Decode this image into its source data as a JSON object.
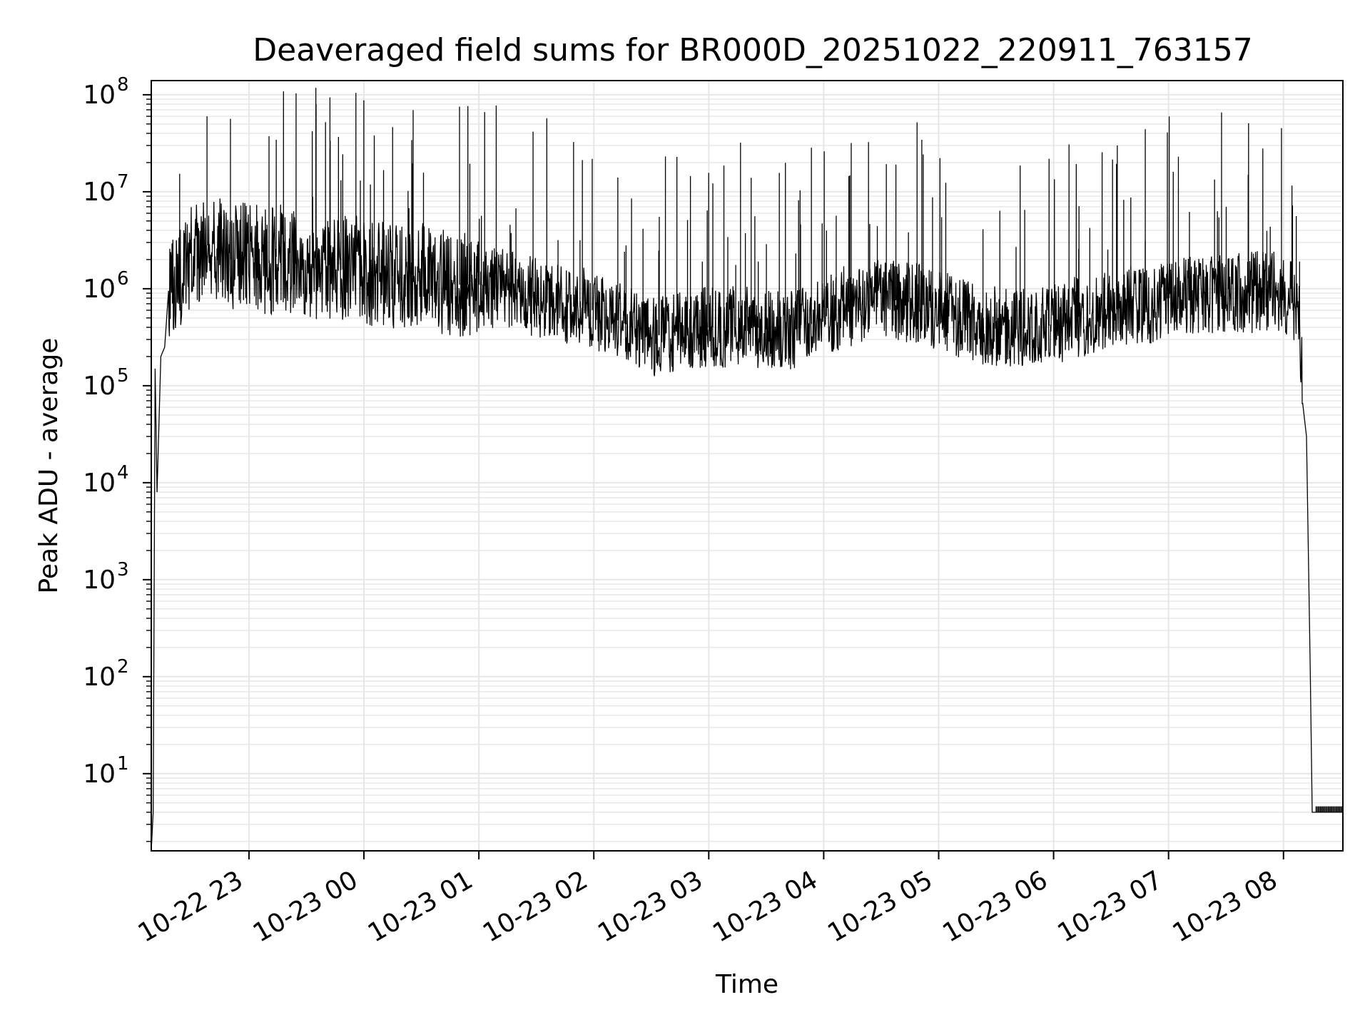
{
  "chart_data": {
    "type": "line",
    "title": "Deaveraged field sums for BR000D_20251022_220911_763157",
    "xlabel": "Time",
    "ylabel": "Peak ADU - average",
    "yscale": "log",
    "ylim": [
      1.6,
      140000000
    ],
    "xlim": [
      "2025-10-22 22:09",
      "2025-10-23 08:31"
    ],
    "grid": true,
    "colors": {
      "line": "#000000",
      "grid": "#e6e6e6",
      "axes": "#000000"
    },
    "x_ticks": [
      "10-22 23",
      "10-23 00",
      "10-23 01",
      "10-23 02",
      "10-23 03",
      "10-23 04",
      "10-23 05",
      "10-23 06",
      "10-23 07",
      "10-23 08"
    ],
    "y_ticks": [
      {
        "base": "10",
        "exp": "1"
      },
      {
        "base": "10",
        "exp": "2"
      },
      {
        "base": "10",
        "exp": "3"
      },
      {
        "base": "10",
        "exp": "4"
      },
      {
        "base": "10",
        "exp": "5"
      },
      {
        "base": "10",
        "exp": "6"
      },
      {
        "base": "10",
        "exp": "7"
      },
      {
        "base": "10",
        "exp": "8"
      }
    ],
    "series": [
      {
        "x": [
          "2025-10-22 22:09",
          "2025-10-22 22:10",
          "2025-10-22 22:11",
          "2025-10-22 22:12",
          "2025-10-22 22:14",
          "2025-10-22 22:16",
          "2025-10-22 22:18",
          "2025-10-22 22:20",
          "2025-10-22 22:25",
          "2025-10-22 22:30",
          "2025-10-22 22:35",
          "2025-10-22 22:40",
          "2025-10-22 22:45",
          "2025-10-22 22:50",
          "2025-10-22 22:55",
          "2025-10-22 23:00",
          "2025-10-22 23:05",
          "2025-10-22 23:10",
          "2025-10-22 23:15",
          "2025-10-22 23:20",
          "2025-10-22 23:25",
          "2025-10-22 23:30",
          "2025-10-22 23:35",
          "2025-10-22 23:40",
          "2025-10-22 23:45",
          "2025-10-22 23:50",
          "2025-10-22 23:55",
          "2025-10-23 00:00",
          "2025-10-23 00:10",
          "2025-10-23 00:20",
          "2025-10-23 00:30",
          "2025-10-23 00:40",
          "2025-10-23 00:50",
          "2025-10-23 01:00",
          "2025-10-23 01:10",
          "2025-10-23 01:20",
          "2025-10-23 01:30",
          "2025-10-23 01:40",
          "2025-10-23 01:50",
          "2025-10-23 02:00",
          "2025-10-23 02:10",
          "2025-10-23 02:20",
          "2025-10-23 02:30",
          "2025-10-23 02:40",
          "2025-10-23 02:50",
          "2025-10-23 03:00",
          "2025-10-23 03:10",
          "2025-10-23 03:20",
          "2025-10-23 03:30",
          "2025-10-23 03:40",
          "2025-10-23 03:50",
          "2025-10-23 04:00",
          "2025-10-23 04:10",
          "2025-10-23 04:20",
          "2025-10-23 04:30",
          "2025-10-23 04:40",
          "2025-10-23 04:50",
          "2025-10-23 05:00",
          "2025-10-23 05:10",
          "2025-10-23 05:20",
          "2025-10-23 05:30",
          "2025-10-23 05:40",
          "2025-10-23 05:50",
          "2025-10-23 06:00",
          "2025-10-23 06:10",
          "2025-10-23 06:20",
          "2025-10-23 06:30",
          "2025-10-23 06:40",
          "2025-10-23 06:50",
          "2025-10-23 07:00",
          "2025-10-23 07:10",
          "2025-10-23 07:20",
          "2025-10-23 07:30",
          "2025-10-23 07:40",
          "2025-10-23 07:50",
          "2025-10-23 08:00",
          "2025-10-23 08:05",
          "2025-10-23 08:08",
          "2025-10-23 08:10",
          "2025-10-23 08:12",
          "2025-10-23 08:14",
          "2025-10-23 08:15",
          "2025-10-23 08:17",
          "2025-10-23 08:31"
        ],
        "y": [
          1.6,
          4,
          150000,
          8000,
          200000,
          250000,
          800000,
          1200000,
          1500000,
          2000000,
          2500000,
          3000000,
          2500000,
          2000000,
          2200000,
          2500000,
          2000000,
          1800000,
          2200000,
          2000000,
          1800000,
          1700000,
          1600000,
          1800000,
          1500000,
          1600000,
          1700000,
          1500000,
          1400000,
          1300000,
          1500000,
          1200000,
          1100000,
          1100000,
          1000000,
          900000,
          800000,
          700000,
          650000,
          600000,
          500000,
          400000,
          320000,
          350000,
          380000,
          400000,
          400000,
          420000,
          380000,
          360000,
          400000,
          500000,
          650000,
          700000,
          800000,
          750000,
          700000,
          600000,
          500000,
          450000,
          400000,
          380000,
          400000,
          420000,
          500000,
          550000,
          600000,
          650000,
          700000,
          800000,
          850000,
          900000,
          900000,
          900000,
          950000,
          900000,
          800000,
          500000,
          100000,
          30000,
          100,
          4,
          4,
          4
        ]
      }
    ]
  }
}
